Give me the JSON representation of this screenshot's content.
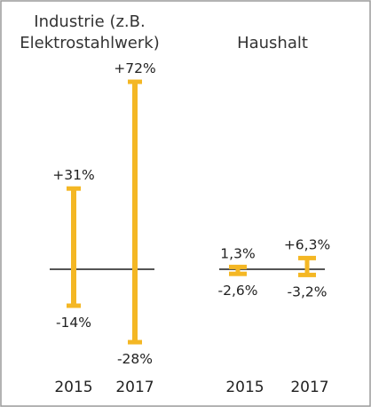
{
  "chart_data": {
    "type": "range",
    "unit": "%",
    "groups": [
      {
        "title_lines": [
          "Industrie (z.B.",
          "Elektrostahlwerk)"
        ],
        "bars": [
          {
            "year": "2015",
            "high": 31,
            "low": -14,
            "high_label": "+31%",
            "low_label": "-14%"
          },
          {
            "year": "2017",
            "high": 72,
            "low": -28,
            "high_label": "+72%",
            "low_label": "-28%"
          }
        ]
      },
      {
        "title_lines": [
          "Haushalt"
        ],
        "bars": [
          {
            "year": "2015",
            "high": 1.3,
            "low": -2.6,
            "high_label": "1,3%",
            "low_label": "-2,6%"
          },
          {
            "year": "2017",
            "high": 6.3,
            "low": -3.2,
            "high_label": "+6,3%",
            "low_label": "-3,2%"
          }
        ]
      }
    ],
    "bar_color": "#f4b724",
    "baseline_color": "#555555"
  }
}
